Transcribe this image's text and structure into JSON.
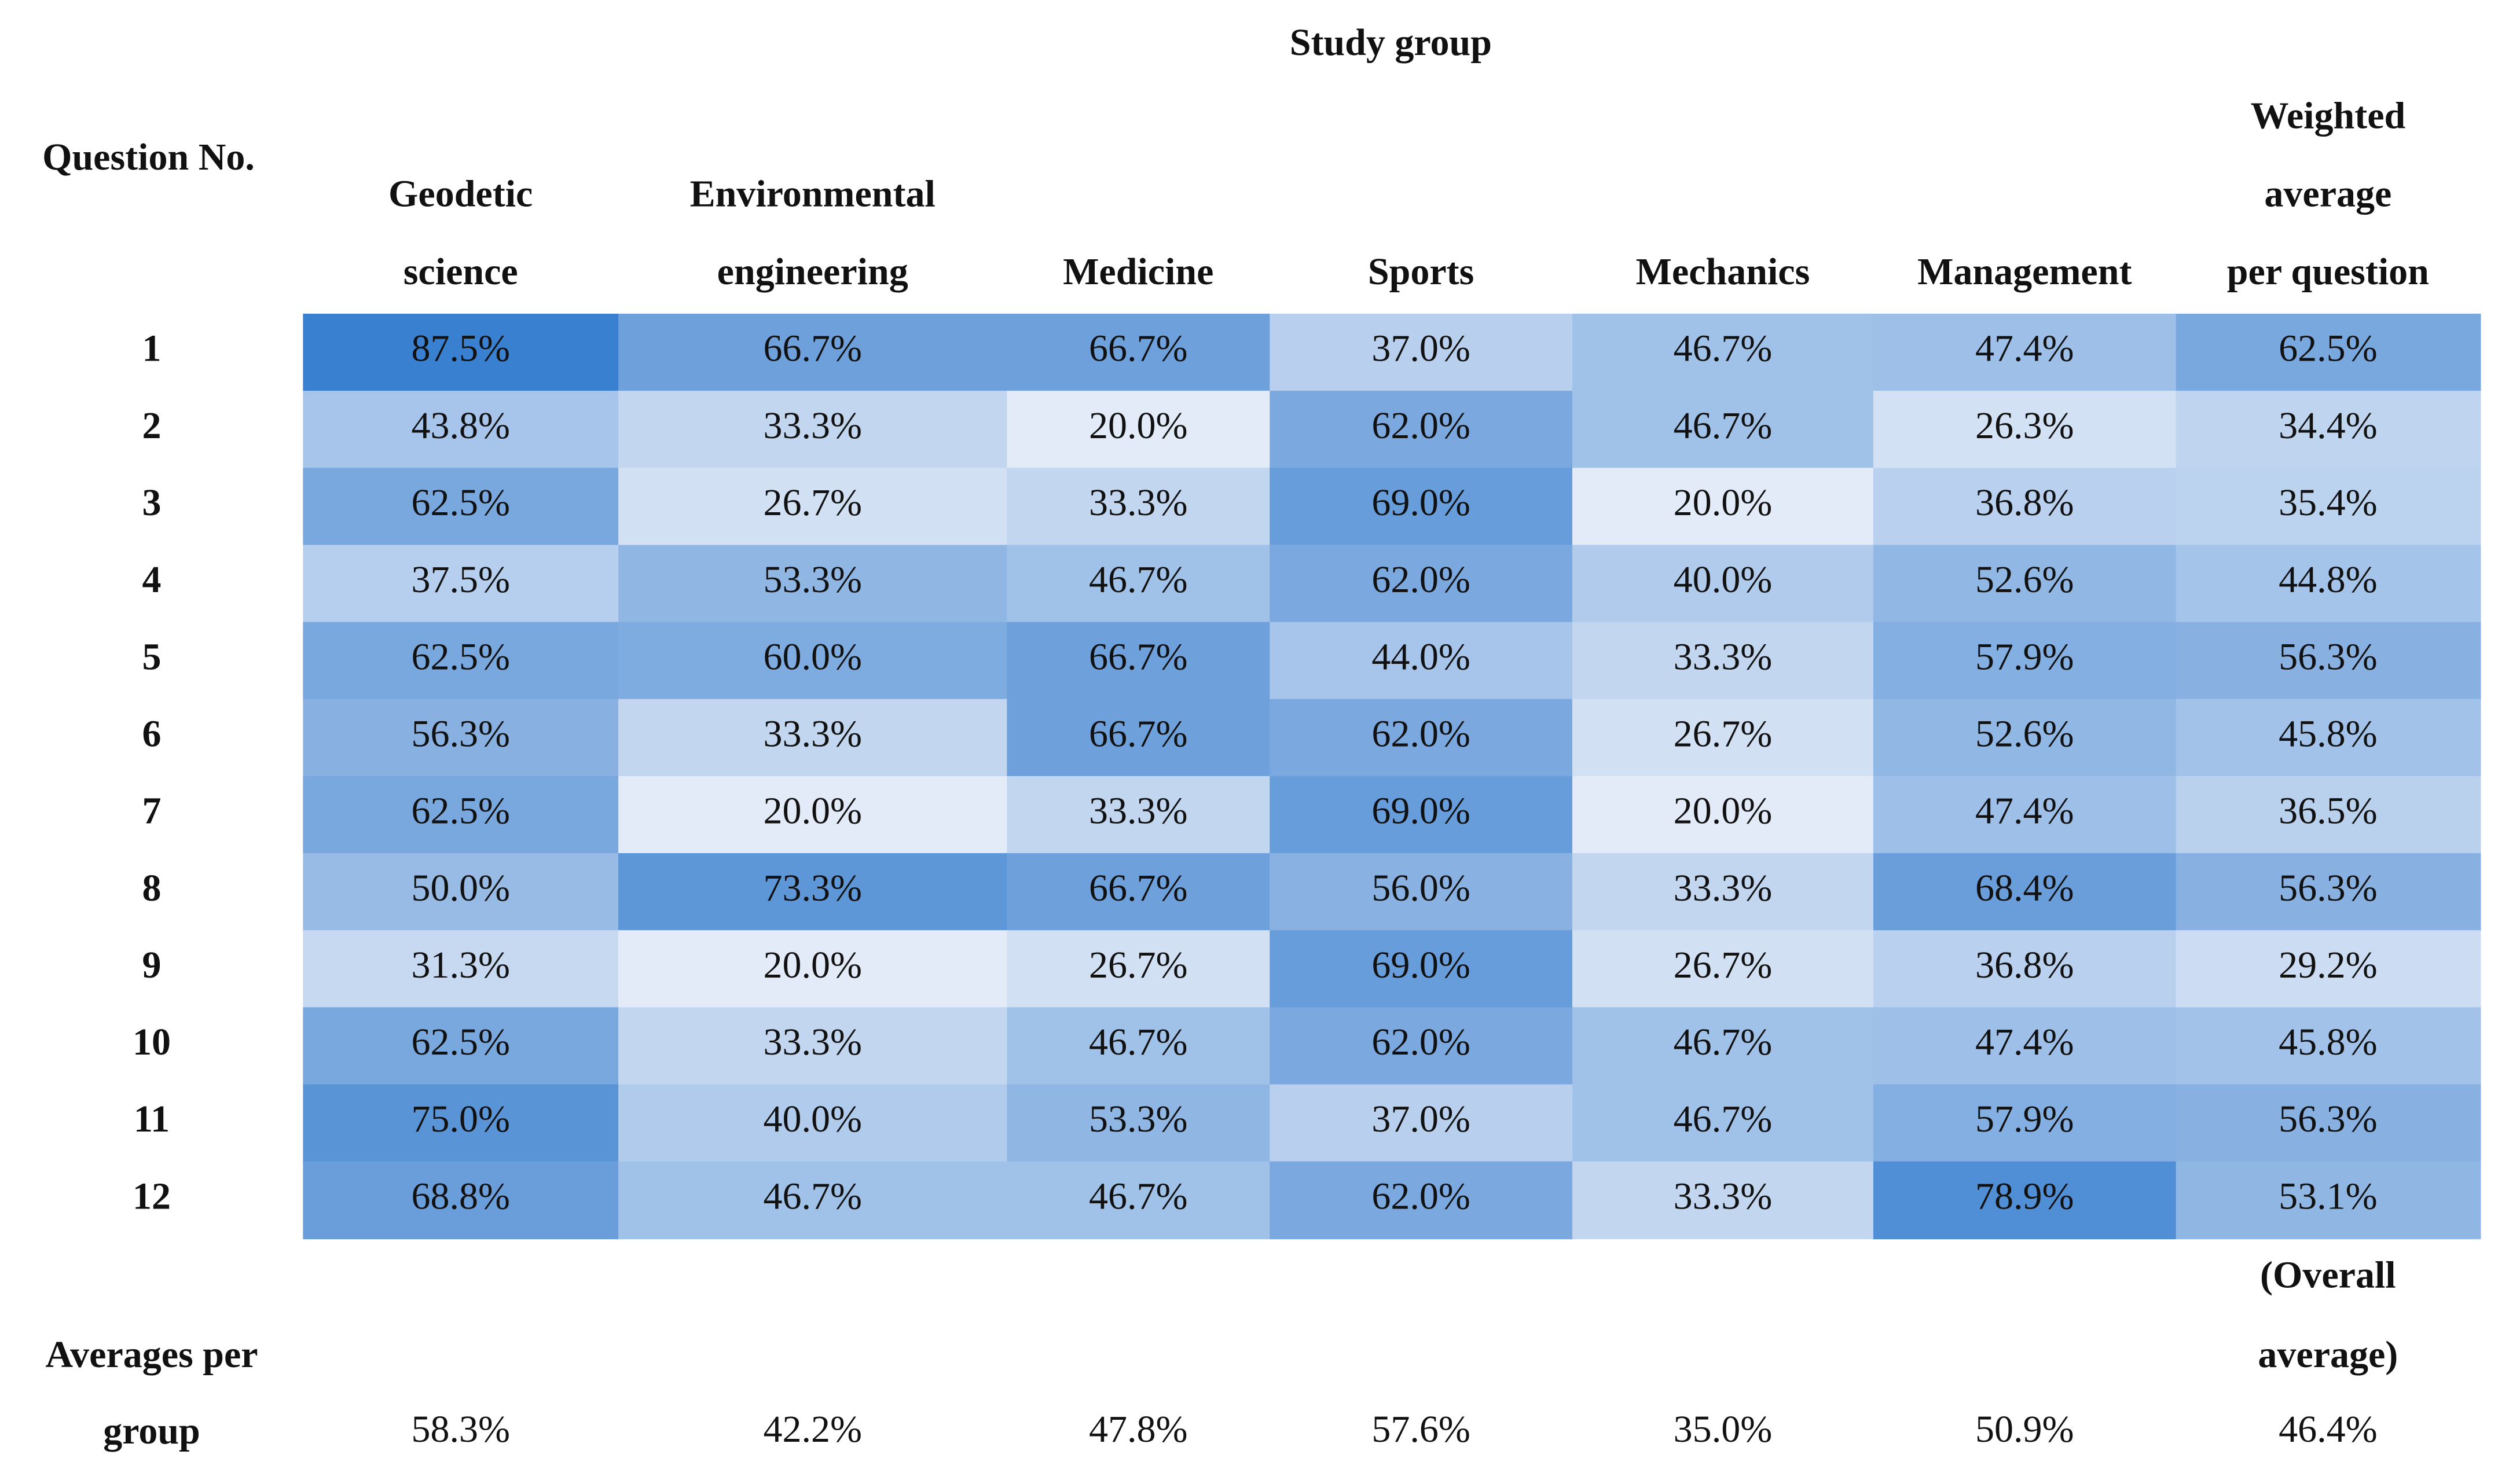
{
  "title": "Study group",
  "row_header": "Question No.",
  "column_headers": [
    [
      "Geodetic",
      "science"
    ],
    [
      "Environmental",
      "engineering"
    ],
    [
      "Medicine"
    ],
    [
      "Sports"
    ],
    [
      "Mechanics"
    ],
    [
      "Management"
    ],
    [
      "Weighted",
      "average",
      "per question"
    ]
  ],
  "color_low": "#e3ebf8",
  "color_high": "#3a80d0",
  "table": {
    "rows": [
      {
        "label": "1",
        "cells": [
          "87.5%",
          "66.7%",
          "66.7%",
          "37.0%",
          "46.7%",
          "47.4%",
          "62.5%"
        ]
      },
      {
        "label": "2",
        "cells": [
          "43.8%",
          "33.3%",
          "20.0%",
          "62.0%",
          "46.7%",
          "26.3%",
          "34.4%"
        ]
      },
      {
        "label": "3",
        "cells": [
          "62.5%",
          "26.7%",
          "33.3%",
          "69.0%",
          "20.0%",
          "36.8%",
          "35.4%"
        ]
      },
      {
        "label": "4",
        "cells": [
          "37.5%",
          "53.3%",
          "46.7%",
          "62.0%",
          "40.0%",
          "52.6%",
          "44.8%"
        ]
      },
      {
        "label": "5",
        "cells": [
          "62.5%",
          "60.0%",
          "66.7%",
          "44.0%",
          "33.3%",
          "57.9%",
          "56.3%"
        ]
      },
      {
        "label": "6",
        "cells": [
          "56.3%",
          "33.3%",
          "66.7%",
          "62.0%",
          "26.7%",
          "52.6%",
          "45.8%"
        ]
      },
      {
        "label": "7",
        "cells": [
          "62.5%",
          "20.0%",
          "33.3%",
          "69.0%",
          "20.0%",
          "47.4%",
          "36.5%"
        ]
      },
      {
        "label": "8",
        "cells": [
          "50.0%",
          "73.3%",
          "66.7%",
          "56.0%",
          "33.3%",
          "68.4%",
          "56.3%"
        ]
      },
      {
        "label": "9",
        "cells": [
          "31.3%",
          "20.0%",
          "26.7%",
          "69.0%",
          "26.7%",
          "36.8%",
          "29.2%"
        ]
      },
      {
        "label": "10",
        "cells": [
          "62.5%",
          "33.3%",
          "46.7%",
          "62.0%",
          "46.7%",
          "47.4%",
          "45.8%"
        ]
      },
      {
        "label": "11",
        "cells": [
          "75.0%",
          "40.0%",
          "53.3%",
          "37.0%",
          "46.7%",
          "57.9%",
          "56.3%"
        ]
      },
      {
        "label": "12",
        "cells": [
          "68.8%",
          "46.7%",
          "46.7%",
          "62.0%",
          "33.3%",
          "78.9%",
          "53.1%"
        ]
      }
    ]
  },
  "footer": {
    "label": [
      "Averages per",
      "group"
    ],
    "overall_label": [
      "(Overall",
      "average)"
    ],
    "values": [
      "58.3%",
      "42.2%",
      "47.8%",
      "57.6%",
      "35.0%",
      "50.9%",
      "46.4%"
    ]
  }
}
